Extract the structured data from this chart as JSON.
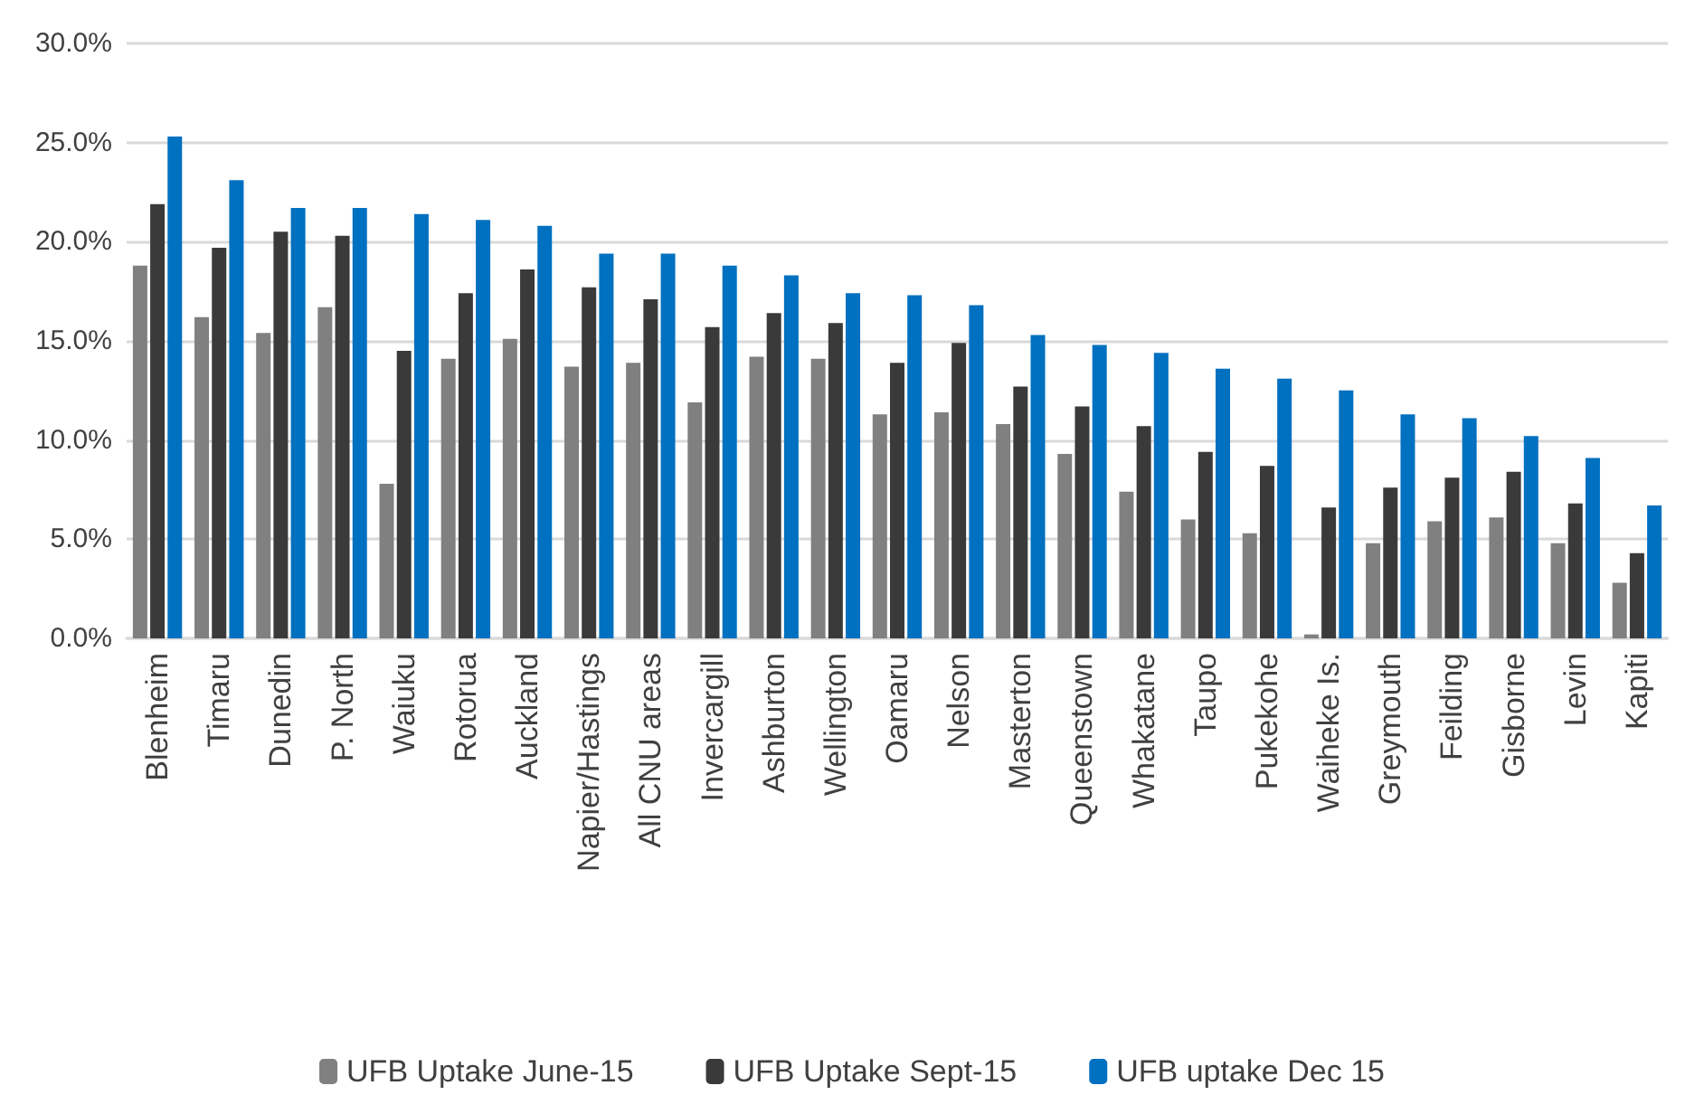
{
  "chart_data": {
    "type": "bar",
    "categories": [
      "Blenheim",
      "Timaru",
      "Dunedin",
      "P. North",
      "Waiuku",
      "Rotorua",
      "Auckland",
      "Napier/Hastings",
      "All CNU areas",
      "Invercargill",
      "Ashburton",
      "Wellington",
      "Oamaru",
      "Nelson",
      "Masterton",
      "Queenstown",
      "Whakatane",
      "Taupo",
      "Pukekohe",
      "Waiheke Is.",
      "Greymouth",
      "Feilding",
      "Gisborne",
      "Levin",
      "Kapiti"
    ],
    "series": [
      {
        "name": "UFB Uptake June-15",
        "color": "#808080",
        "values": [
          18.8,
          16.2,
          15.4,
          16.7,
          7.8,
          14.1,
          15.1,
          13.7,
          13.9,
          11.9,
          14.2,
          14.1,
          11.3,
          11.4,
          10.8,
          9.3,
          7.4,
          6.0,
          5.3,
          0.2,
          4.8,
          5.9,
          6.1,
          4.8,
          2.8
        ]
      },
      {
        "name": "UFB Uptake Sept-15",
        "color": "#3a3a3a",
        "values": [
          21.9,
          19.7,
          20.5,
          20.3,
          14.5,
          17.4,
          18.6,
          17.7,
          17.1,
          15.7,
          16.4,
          15.9,
          13.9,
          14.9,
          12.7,
          11.7,
          10.7,
          9.4,
          8.7,
          6.6,
          7.6,
          8.1,
          8.4,
          6.8,
          4.3
        ]
      },
      {
        "name": "UFB uptake Dec 15",
        "color": "#0070c0",
        "values": [
          25.3,
          23.1,
          21.7,
          21.7,
          21.4,
          21.1,
          20.8,
          19.4,
          19.4,
          18.8,
          18.3,
          17.4,
          17.3,
          16.8,
          15.3,
          14.8,
          14.4,
          13.6,
          13.1,
          12.5,
          11.3,
          11.1,
          10.2,
          9.1,
          6.7
        ]
      }
    ],
    "ylim": [
      0,
      30
    ],
    "yticks": [
      {
        "value": 0,
        "label": "0.0%"
      },
      {
        "value": 5,
        "label": "5.0%"
      },
      {
        "value": 10,
        "label": "10.0%"
      },
      {
        "value": 15,
        "label": "15.0%"
      },
      {
        "value": 20,
        "label": "20.0%"
      },
      {
        "value": 25,
        "label": "25.0%"
      },
      {
        "value": 30,
        "label": "30.0%"
      }
    ],
    "grid": "y",
    "legend": "bottom"
  }
}
